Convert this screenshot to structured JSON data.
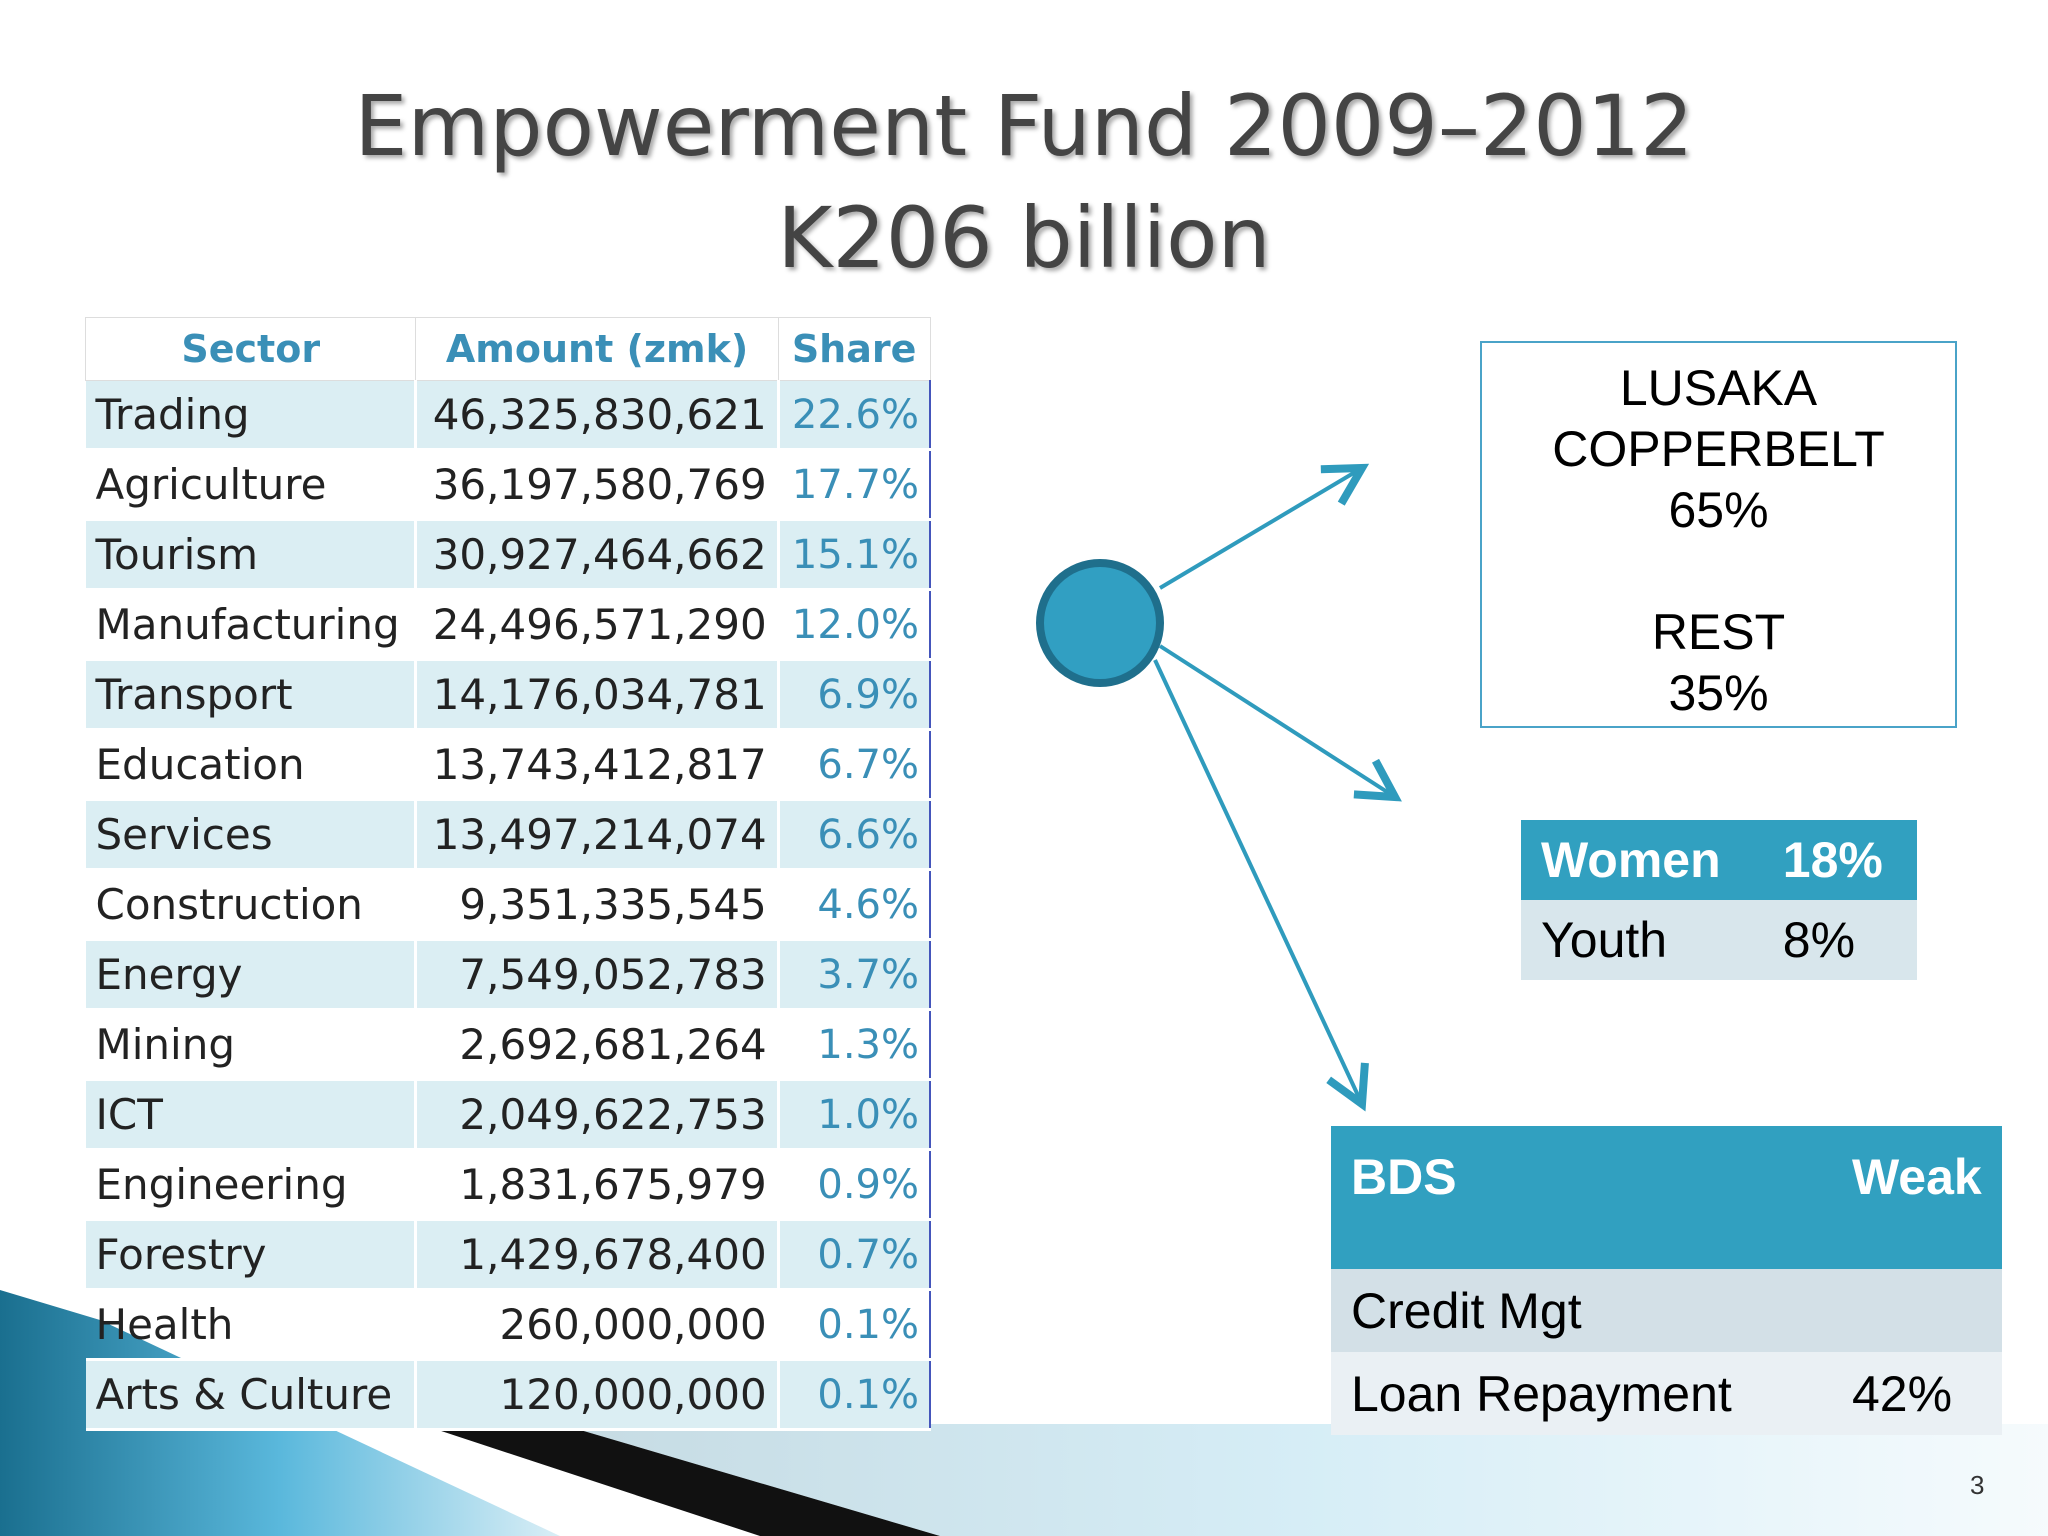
{
  "title": {
    "line1": "Empowerment Fund  2009–2012",
    "line2": "K206 billion"
  },
  "sector_table": {
    "columns": [
      "Sector",
      "Amount (zmk)",
      "Share"
    ],
    "rows": [
      [
        "Trading",
        "46,325,830,621",
        "22.6%"
      ],
      [
        "Agriculture",
        "36,197,580,769",
        "17.7%"
      ],
      [
        "Tourism",
        "30,927,464,662",
        "15.1%"
      ],
      [
        "Manufacturing",
        "24,496,571,290",
        "12.0%"
      ],
      [
        "Transport",
        "14,176,034,781",
        "6.9%"
      ],
      [
        "Education",
        "13,743,412,817",
        "6.7%"
      ],
      [
        "Services",
        "13,497,214,074",
        "6.6%"
      ],
      [
        "Construction",
        "9,351,335,545",
        "4.6%"
      ],
      [
        "Energy",
        "7,549,052,783",
        "3.7%"
      ],
      [
        "Mining",
        "2,692,681,264",
        "1.3%"
      ],
      [
        "ICT",
        "2,049,622,753",
        "1.0%"
      ],
      [
        "Engineering",
        "1,831,675,979",
        "0.9%"
      ],
      [
        "Forestry",
        "1,429,678,400",
        "0.7%"
      ],
      [
        "Health",
        "260,000,000",
        "0.1%"
      ],
      [
        "Arts & Culture",
        "120,000,000",
        "0.1%"
      ]
    ]
  },
  "region_box": {
    "groups": [
      [
        "LUSAKA",
        "COPPERBELT",
        "65%"
      ],
      [
        "REST",
        "35%"
      ]
    ]
  },
  "demographic_table": {
    "rows": [
      [
        "Women",
        "18%"
      ],
      [
        "Youth",
        "8%"
      ]
    ]
  },
  "bds_table": {
    "header": [
      "BDS",
      "Weak"
    ],
    "rows": [
      [
        "Credit Mgt"
      ],
      [
        "Loan Repayment",
        "42%"
      ]
    ]
  },
  "page_number": "3"
}
